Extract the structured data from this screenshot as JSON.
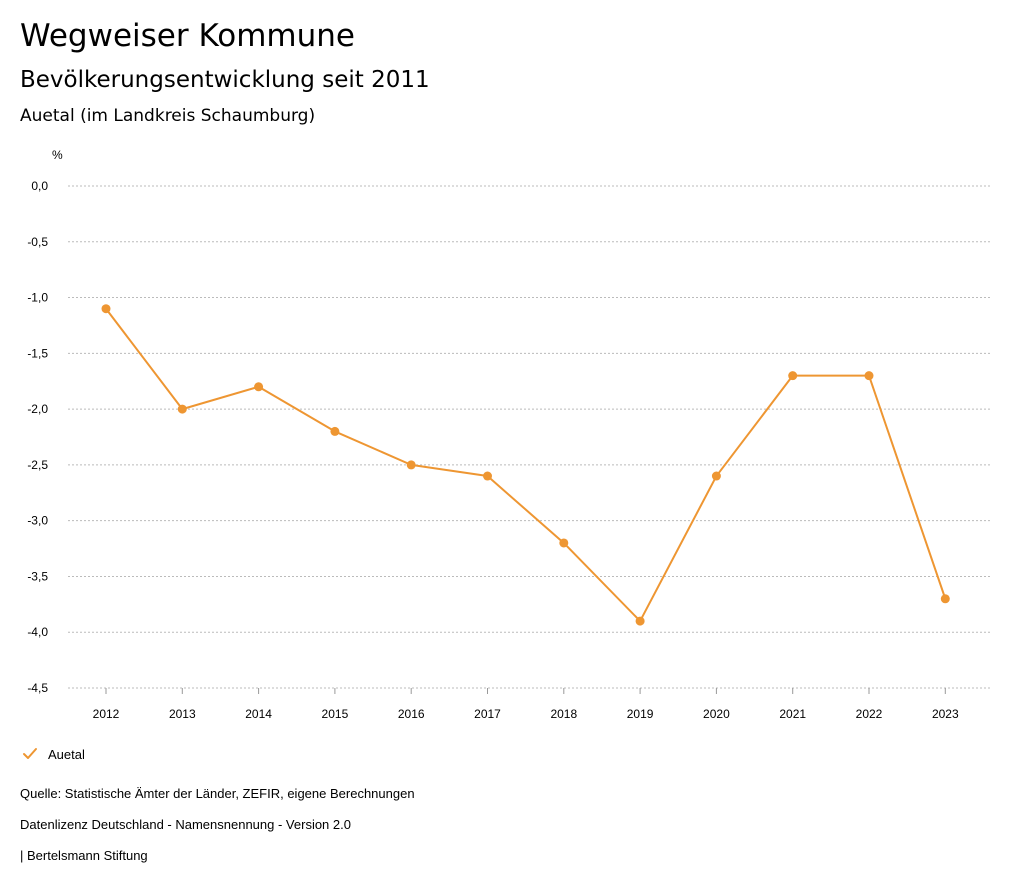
{
  "header": {
    "title": "Wegweiser Kommune",
    "subtitle": "Bevölkerungsentwicklung seit 2011",
    "region": "Auetal (im Landkreis Schaumburg)"
  },
  "chart_data": {
    "type": "line",
    "title": "Bevölkerungsentwicklung seit 2011",
    "ylabel": "%",
    "xlabel": "",
    "categories": [
      "2012",
      "2013",
      "2014",
      "2015",
      "2016",
      "2017",
      "2018",
      "2019",
      "2020",
      "2021",
      "2022",
      "2023"
    ],
    "series": [
      {
        "name": "Auetal",
        "color": "#ee9632",
        "values": [
          -1.1,
          -2.0,
          -1.8,
          -2.2,
          -2.5,
          -2.6,
          -3.2,
          -3.9,
          -2.6,
          -1.7,
          -1.7,
          -3.7
        ]
      }
    ],
    "ylim": [
      -4.5,
      0.0
    ],
    "yticks": [
      "0,0",
      "-0,5",
      "-1,0",
      "-1,5",
      "-2,0",
      "-2,5",
      "-3,0",
      "-3,5",
      "-4,0",
      "-4,5"
    ],
    "ytick_values": [
      0.0,
      -0.5,
      -1.0,
      -1.5,
      -2.0,
      -2.5,
      -3.0,
      -3.5,
      -4.0,
      -4.5
    ],
    "grid": true,
    "legend": "bottom-left"
  },
  "legend": {
    "label": "Auetal",
    "icon": "checkmark-icon"
  },
  "footer": {
    "source": "Quelle: Statistische Ämter der Länder, ZEFIR, eigene Berechnungen",
    "license": "Datenlizenz Deutschland - Namensnennung - Version 2.0",
    "publisher": "| Bertelsmann Stiftung"
  },
  "colors": {
    "accent": "#ee9632",
    "grid": "#bbbbbb"
  }
}
